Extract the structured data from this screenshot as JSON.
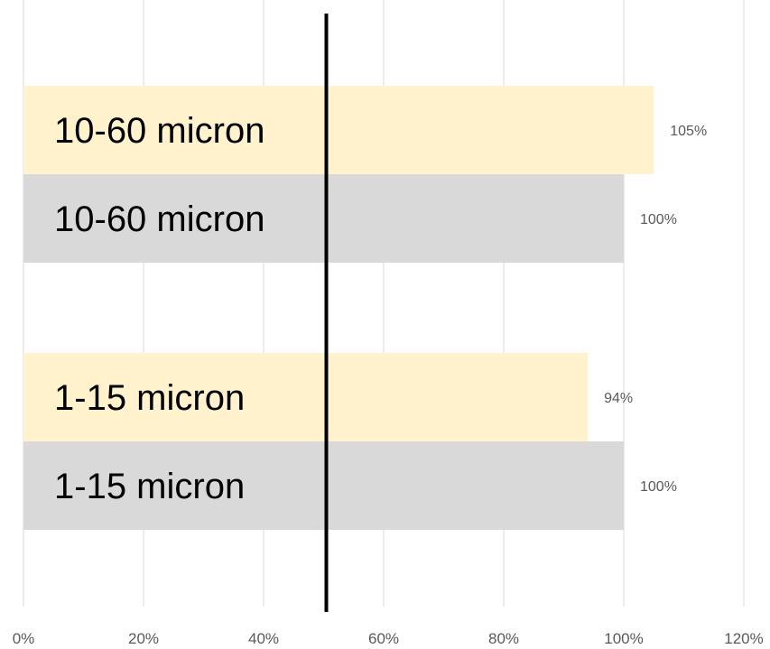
{
  "chart_data": {
    "type": "bar",
    "orientation": "horizontal",
    "xlim": [
      0,
      1.2
    ],
    "x_ticks": [
      "0%",
      "20%",
      "40%",
      "60%",
      "80%",
      "100%",
      "120%"
    ],
    "grid": true,
    "reference_line": {
      "value": 0.5
    },
    "groups": [
      {
        "bars": [
          {
            "label": "10-60 micron",
            "value": 1.05,
            "value_label": "105%",
            "color": "#FFF2CC"
          },
          {
            "label": "10-60 micron",
            "value": 1.0,
            "value_label": "100%",
            "color": "#D9D9D9"
          }
        ]
      },
      {
        "bars": [
          {
            "label": "1-15 micron",
            "value": 0.94,
            "value_label": "94%",
            "color": "#FFF2CC"
          },
          {
            "label": "1-15 micron",
            "value": 1.0,
            "value_label": "100%",
            "color": "#D9D9D9"
          }
        ]
      }
    ]
  }
}
